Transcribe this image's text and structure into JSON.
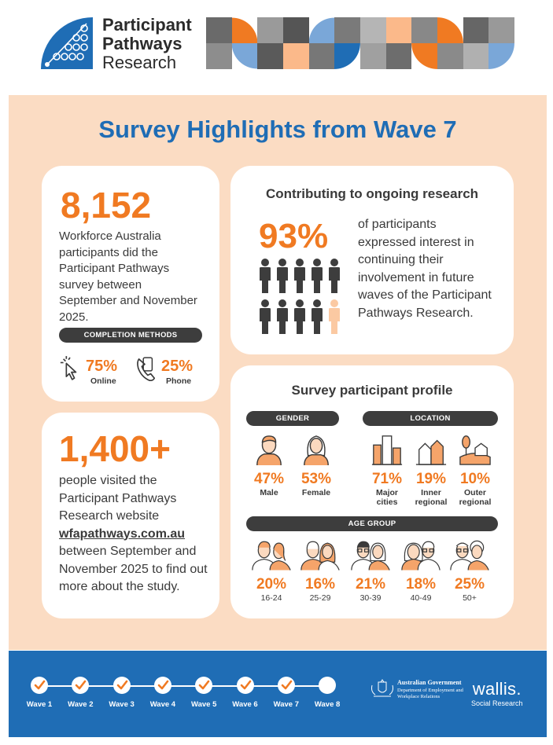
{
  "header": {
    "logo_line1": "Participant",
    "logo_line2": "Pathways",
    "logo_line3": "Research"
  },
  "title": "Survey Highlights from Wave 7",
  "participants": {
    "number": "8,152",
    "text": "Workforce Australia participants did the Participant Pathways survey between September and November 2025.",
    "completion_label": "COMPLETION METHODS",
    "online_pct": "75%",
    "online_label": "Online",
    "phone_pct": "25%",
    "phone_label": "Phone"
  },
  "research": {
    "heading": "Contributing to ongoing research",
    "pct": "93%",
    "text": "of participants expressed interest in continuing their involvement in future waves of the Participant Pathways Research."
  },
  "website": {
    "number": "1,400+",
    "text1": "people visited the Participant Pathways Research website",
    "url": "wfapathways.com.au",
    "text2": "between September and November 2025 to find out more about the study."
  },
  "profile": {
    "heading": "Survey participant profile",
    "gender_label": "GENDER",
    "location_label": "LOCATION",
    "age_label": "AGE GROUP",
    "gender": [
      {
        "pct": "47%",
        "label": "Male"
      },
      {
        "pct": "53%",
        "label": "Female"
      }
    ],
    "location": [
      {
        "pct": "71%",
        "label1": "Major",
        "label2": "cities"
      },
      {
        "pct": "19%",
        "label1": "Inner",
        "label2": "regional"
      },
      {
        "pct": "10%",
        "label1": "Outer",
        "label2": "regional"
      }
    ],
    "age": [
      {
        "pct": "20%",
        "label": "16-24"
      },
      {
        "pct": "16%",
        "label": "25-29"
      },
      {
        "pct": "21%",
        "label": "30-39"
      },
      {
        "pct": "18%",
        "label": "40-49"
      },
      {
        "pct": "25%",
        "label": "50+"
      }
    ]
  },
  "footer": {
    "waves": [
      "Wave 1",
      "Wave 2",
      "Wave 3",
      "Wave 4",
      "Wave 5",
      "Wave 6",
      "Wave 7",
      "Wave 8"
    ],
    "gov_line1": "Australian Government",
    "gov_line2": "Department of Employment and Workplace Relations",
    "wallis_line1": "wallis.",
    "wallis_line2": "Social Research"
  },
  "colors": {
    "brand_blue": "#1f6db5",
    "accent_orange": "#f07a22",
    "panel_peach": "#fbdcc3",
    "dark": "#3d3d3d"
  }
}
